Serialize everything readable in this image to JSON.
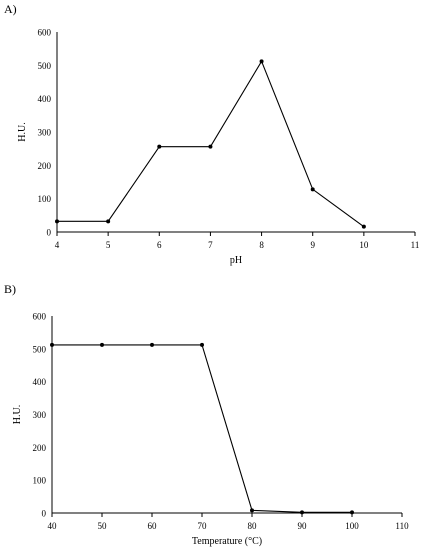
{
  "chart_data": [
    {
      "type": "line",
      "panel_label": "A)",
      "title": "",
      "xlabel": "pH",
      "ylabel": "H.U.",
      "xlim": [
        4,
        11
      ],
      "ylim": [
        0,
        600
      ],
      "xticks": [
        4,
        5,
        6,
        7,
        8,
        9,
        10,
        11
      ],
      "yticks": [
        0,
        100,
        200,
        300,
        400,
        500,
        600
      ],
      "grid": false,
      "legend": "none",
      "color": "#000000",
      "series": [
        {
          "x": [
            4,
            5,
            6,
            7,
            8,
            9,
            10
          ],
          "y": [
            32,
            32,
            256,
            256,
            512,
            128,
            16
          ]
        }
      ]
    },
    {
      "type": "line",
      "panel_label": "B)",
      "title": "",
      "xlabel": "Temperature (°C)",
      "ylabel": "H.U.",
      "xlim": [
        40,
        110
      ],
      "ylim": [
        0,
        600
      ],
      "xticks": [
        40,
        50,
        60,
        70,
        80,
        90,
        100,
        110
      ],
      "yticks": [
        0,
        100,
        200,
        300,
        400,
        500,
        600
      ],
      "grid": false,
      "legend": "none",
      "color": "#000000",
      "series": [
        {
          "x": [
            40,
            50,
            60,
            70,
            80,
            90,
            100
          ],
          "y": [
            512,
            512,
            512,
            512,
            8,
            2,
            2
          ]
        }
      ]
    }
  ]
}
